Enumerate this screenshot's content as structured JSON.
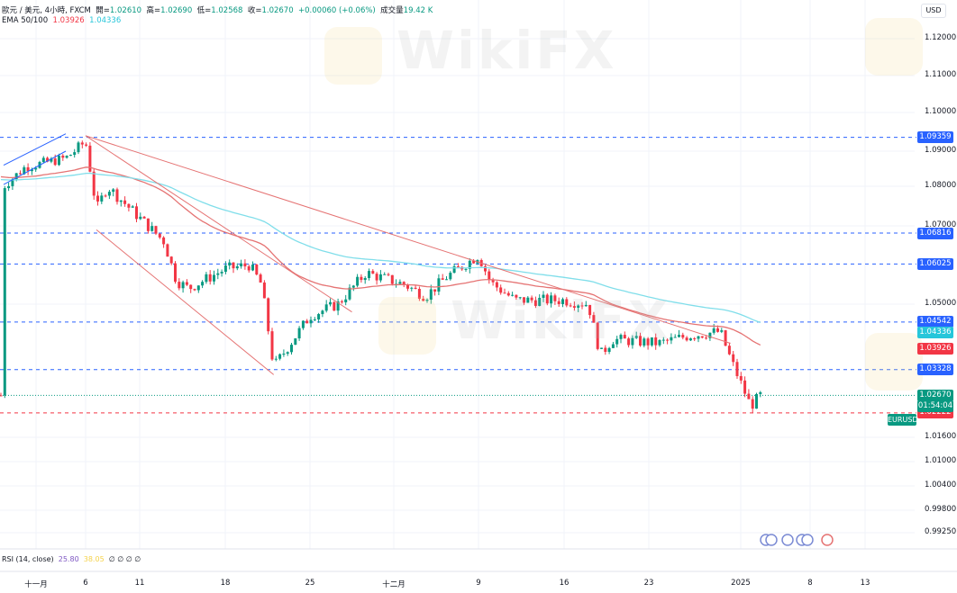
{
  "header": {
    "symbol": "歐元 / 美元, 4小時, FXCM",
    "open_label": "開=",
    "open": "1.02610",
    "high_label": "高=",
    "high": "1.02690",
    "low_label": "低=",
    "low": "1.02568",
    "close_label": "收=",
    "close": "1.02670",
    "change": "+0.00060 (+0.06%)",
    "volume_label": "成交量",
    "volume": "19.42 K"
  },
  "ema": {
    "label": "EMA 50/100",
    "ema50": "1.03926",
    "ema100": "1.04336"
  },
  "rsi": {
    "label": "RSI (14, close)",
    "v1": "25.80",
    "v2": "38.05",
    "extra": "∅ ∅ ∅ ∅"
  },
  "axis": {
    "currency": "USD",
    "price_ticks": [
      "1.12000",
      "1.11000",
      "1.10000",
      "1.09000",
      "1.08000",
      "1.07000",
      "1.05000",
      "1.01600",
      "1.01000",
      "1.00400",
      "0.99800",
      "0.99250"
    ],
    "time_ticks": [
      "十一月",
      "6",
      "11",
      "18",
      "25",
      "十二月",
      "9",
      "16",
      "23",
      "2025",
      "8",
      "13"
    ]
  },
  "tags": {
    "symbol": "EURUSD",
    "current": "1.02670",
    "countdown": "01:54:04",
    "levels": [
      "1.09359",
      "1.06816",
      "1.06025",
      "1.04542",
      "1.03328",
      "1.02222"
    ],
    "ema100": "1.04336",
    "ema50": "1.03926"
  },
  "watermark": "WikiFX",
  "colors": {
    "up": "#089981",
    "down": "#f23645",
    "ema50": "#e57373",
    "ema100": "#80deea",
    "level": "#2962ff",
    "support": "#f23645",
    "trend": "#e57373",
    "channel": "#2962ff"
  },
  "chart_data": {
    "type": "candlestick",
    "symbol": "EURUSD",
    "timeframe": "4h",
    "price_path": [
      [
        "2024-10-29",
        1.08
      ],
      [
        "2024-10-31",
        1.0855
      ],
      [
        "2024-11-04",
        1.088
      ],
      [
        "2024-11-06",
        1.0925
      ],
      [
        "2024-11-07",
        1.074
      ],
      [
        "2024-11-08",
        1.08
      ],
      [
        "2024-11-11",
        1.072
      ],
      [
        "2024-11-13",
        1.066
      ],
      [
        "2024-11-14",
        1.056
      ],
      [
        "2024-11-15",
        1.054
      ],
      [
        "2024-11-18",
        1.059
      ],
      [
        "2024-11-20",
        1.06
      ],
      [
        "2024-11-21",
        1.055
      ],
      [
        "2024-11-22",
        1.034
      ],
      [
        "2024-11-25",
        1.047
      ],
      [
        "2024-11-27",
        1.05
      ],
      [
        "2024-11-29",
        1.058
      ],
      [
        "2024-12-02",
        1.055
      ],
      [
        "2024-12-04",
        1.052
      ],
      [
        "2024-12-06",
        1.057
      ],
      [
        "2024-12-09",
        1.0625
      ],
      [
        "2024-12-10",
        1.0555
      ],
      [
        "2024-12-12",
        1.051
      ],
      [
        "2024-12-16",
        1.051
      ],
      [
        "2024-12-18",
        1.05
      ],
      [
        "2024-12-19",
        1.037
      ],
      [
        "2024-12-20",
        1.041
      ],
      [
        "2024-12-24",
        1.04
      ],
      [
        "2024-12-27",
        1.042
      ],
      [
        "2024-12-30",
        1.043
      ],
      [
        "2024-12-31",
        1.036
      ],
      [
        "2025-01-02",
        1.024
      ],
      [
        "2025-01-03",
        1.0267
      ]
    ],
    "levels": [
      1.09359,
      1.06816,
      1.06025,
      1.04542,
      1.03328,
      1.02222
    ],
    "current": 1.0267,
    "trendlines": [
      [
        "2024-11-06",
        1.094,
        "2024-12-31",
        1.04
      ],
      [
        "2024-11-06",
        1.094,
        "2024-11-28",
        1.048
      ],
      [
        "2024-11-07",
        1.069,
        "2024-11-22",
        1.032
      ],
      [
        "2024-10-29",
        1.0805,
        "2024-11-04",
        1.09
      ],
      [
        "2024-10-29",
        1.086,
        "2024-11-04",
        1.0945
      ]
    ]
  }
}
